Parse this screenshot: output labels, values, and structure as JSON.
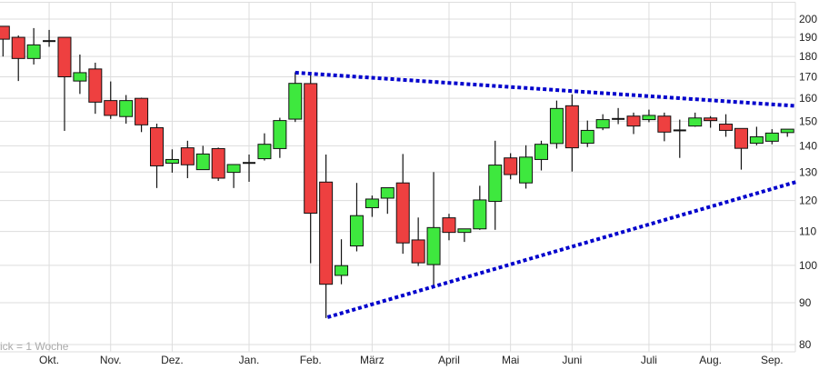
{
  "chart_data": {
    "type": "candlestick",
    "title": "",
    "xlabel": "",
    "ylabel": "",
    "y_scale": "log",
    "ylim": [
      78,
      204
    ],
    "grid": true,
    "note": "ick = 1 Woche",
    "colors": {
      "up": "#3ee83e",
      "down": "#ee4040",
      "trendline": "#0000cc",
      "grid": "#dddddd"
    },
    "y_ticks": [
      80,
      90,
      100,
      110,
      120,
      130,
      140,
      150,
      160,
      170,
      180,
      190,
      200
    ],
    "x_ticks": [
      {
        "label": "Okt.",
        "candle": 4
      },
      {
        "label": "Nov.",
        "candle": 8
      },
      {
        "label": "Dez.",
        "candle": 12
      },
      {
        "label": "Jan.",
        "candle": 17
      },
      {
        "label": "Feb.",
        "candle": 21
      },
      {
        "label": "März",
        "candle": 25
      },
      {
        "label": "April",
        "candle": 30
      },
      {
        "label": "Mai",
        "candle": 34
      },
      {
        "label": "Juni",
        "candle": 38
      },
      {
        "label": "Juli",
        "candle": 43
      },
      {
        "label": "Aug.",
        "candle": 47
      },
      {
        "label": "Sep.",
        "candle": 51
      }
    ],
    "candles": [
      {
        "o": 196,
        "h": 196,
        "l": 180,
        "c": 189
      },
      {
        "o": 190,
        "h": 191,
        "l": 168,
        "c": 179
      },
      {
        "o": 179,
        "h": 195,
        "l": 176,
        "c": 186
      },
      {
        "o": 188,
        "h": 194,
        "l": 185,
        "c": 188
      },
      {
        "o": 190,
        "h": 190,
        "l": 146,
        "c": 170
      },
      {
        "o": 168,
        "h": 181,
        "l": 162,
        "c": 172
      },
      {
        "o": 173.8,
        "h": 176.9,
        "l": 153.2,
        "c": 158.3
      },
      {
        "o": 159,
        "h": 167.8,
        "l": 151,
        "c": 152.5
      },
      {
        "o": 152,
        "h": 161.5,
        "l": 149,
        "c": 159
      },
      {
        "o": 160,
        "h": 160.3,
        "l": 145.5,
        "c": 148.5
      },
      {
        "o": 147.3,
        "h": 149,
        "l": 124.3,
        "c": 132.3
      },
      {
        "o": 133.3,
        "h": 138.6,
        "l": 129.8,
        "c": 134.7
      },
      {
        "o": 139.2,
        "h": 142,
        "l": 127.8,
        "c": 132.7
      },
      {
        "o": 130.9,
        "h": 140,
        "l": 130.9,
        "c": 136.8
      },
      {
        "o": 138.9,
        "h": 139.3,
        "l": 126.8,
        "c": 127.8
      },
      {
        "o": 129.9,
        "h": 132.8,
        "l": 124.3,
        "c": 132.8
      },
      {
        "o": 133.4,
        "h": 136.6,
        "l": 126.5,
        "c": 133.4
      },
      {
        "o": 135,
        "h": 145,
        "l": 134.3,
        "c": 140.6
      },
      {
        "o": 138.9,
        "h": 151.5,
        "l": 135.3,
        "c": 150.3
      },
      {
        "o": 150.9,
        "h": 172.2,
        "l": 149.7,
        "c": 166.9
      },
      {
        "o": 166.8,
        "h": 170.7,
        "l": 100.6,
        "c": 115.8
      },
      {
        "o": 126.4,
        "h": 136.6,
        "l": 86.2,
        "c": 94.8
      },
      {
        "o": 97.2,
        "h": 107.6,
        "l": 94.8,
        "c": 99.9
      },
      {
        "o": 105.6,
        "h": 126.1,
        "l": 104,
        "c": 115
      },
      {
        "o": 117.6,
        "h": 121.7,
        "l": 114.6,
        "c": 120.5
      },
      {
        "o": 120.8,
        "h": 124.4,
        "l": 115.6,
        "c": 124.4
      },
      {
        "o": 126.1,
        "h": 136.8,
        "l": 103.3,
        "c": 106.5
      },
      {
        "o": 107.4,
        "h": 114.4,
        "l": 99.8,
        "c": 100.7
      },
      {
        "o": 100.2,
        "h": 130,
        "l": 94.4,
        "c": 111.2
      },
      {
        "o": 114.3,
        "h": 115.6,
        "l": 107.3,
        "c": 109.7
      },
      {
        "o": 109.7,
        "h": 110.8,
        "l": 106.8,
        "c": 110.8
      },
      {
        "o": 110.8,
        "h": 125.1,
        "l": 110.5,
        "c": 120.2
      },
      {
        "o": 119.7,
        "h": 142,
        "l": 110.5,
        "c": 132.6
      },
      {
        "o": 135.3,
        "h": 137.1,
        "l": 127.4,
        "c": 129.1
      },
      {
        "o": 126.1,
        "h": 140.2,
        "l": 124.1,
        "c": 135.6
      },
      {
        "o": 134.7,
        "h": 142,
        "l": 130.6,
        "c": 140.6
      },
      {
        "o": 140.9,
        "h": 159,
        "l": 138.9,
        "c": 155.5
      },
      {
        "o": 156.7,
        "h": 161.8,
        "l": 130.2,
        "c": 139.2
      },
      {
        "o": 141,
        "h": 150.3,
        "l": 139.5,
        "c": 146.2
      },
      {
        "o": 147.2,
        "h": 153,
        "l": 146.3,
        "c": 150.7
      },
      {
        "o": 151,
        "h": 155.7,
        "l": 148.8,
        "c": 151
      },
      {
        "o": 152.2,
        "h": 153.7,
        "l": 144.7,
        "c": 148
      },
      {
        "o": 150.7,
        "h": 155,
        "l": 149.6,
        "c": 152.5
      },
      {
        "o": 152.2,
        "h": 153.7,
        "l": 141.8,
        "c": 145.5
      },
      {
        "o": 146.2,
        "h": 150.7,
        "l": 135.3,
        "c": 146.2
      },
      {
        "o": 148,
        "h": 153.7,
        "l": 147.7,
        "c": 151.4
      },
      {
        "o": 151.4,
        "h": 152.2,
        "l": 147.3,
        "c": 150.3
      },
      {
        "o": 148.8,
        "h": 153,
        "l": 143.6,
        "c": 146.2
      },
      {
        "o": 147,
        "h": 147,
        "l": 130.9,
        "c": 139
      },
      {
        "o": 141,
        "h": 147.7,
        "l": 140.2,
        "c": 143.6
      },
      {
        "o": 141.8,
        "h": 146.7,
        "l": 140.6,
        "c": 145.1
      },
      {
        "o": 145.3,
        "h": 146.7,
        "l": 143.6,
        "c": 146.7
      }
    ],
    "trendlines": [
      {
        "from": {
          "candle": 20,
          "price": 172
        },
        "to": {
          "candle": 52.6,
          "price": 156.6
        }
      },
      {
        "from": {
          "candle": 22.1,
          "price": 86.4
        },
        "to": {
          "candle": 52.6,
          "price": 126.5
        }
      }
    ]
  }
}
